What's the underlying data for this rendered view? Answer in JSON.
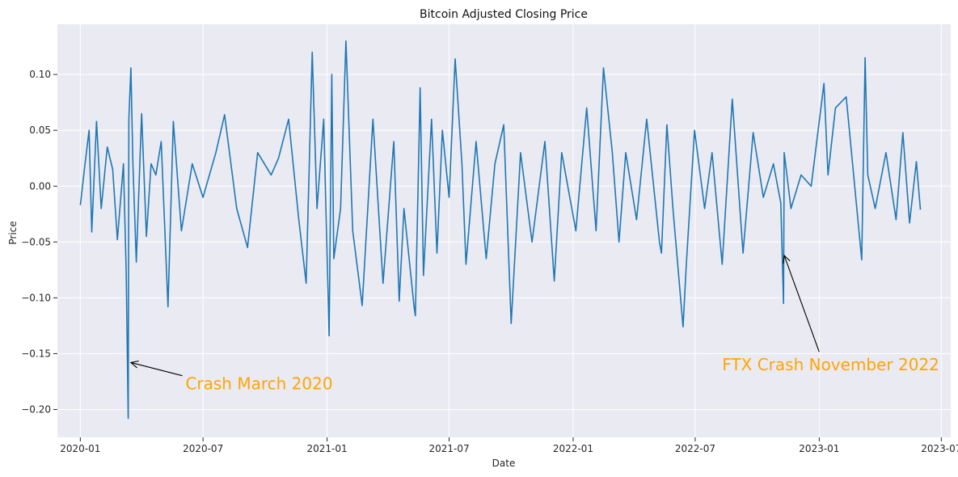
{
  "chart_data": {
    "type": "line",
    "title": "Bitcoin Adjusted Closing Price",
    "xlabel": "Date",
    "ylabel": "Price",
    "xlim": [
      "2019-11-28",
      "2023-07-15"
    ],
    "ylim": [
      -0.225,
      0.145
    ],
    "grid": true,
    "x_ticks": [
      {
        "value": "2020-01-01",
        "label": "2020-01"
      },
      {
        "value": "2020-07-01",
        "label": "2020-07"
      },
      {
        "value": "2021-01-01",
        "label": "2021-01"
      },
      {
        "value": "2021-07-01",
        "label": "2021-07"
      },
      {
        "value": "2022-01-01",
        "label": "2022-01"
      },
      {
        "value": "2022-07-01",
        "label": "2022-07"
      },
      {
        "value": "2023-01-01",
        "label": "2023-01"
      },
      {
        "value": "2023-07-01",
        "label": "2023-07"
      }
    ],
    "y_ticks": [
      {
        "value": 0.1,
        "label": "0.10"
      },
      {
        "value": 0.05,
        "label": "0.05"
      },
      {
        "value": 0.0,
        "label": "0.00"
      },
      {
        "value": -0.05,
        "label": "−0.05"
      },
      {
        "value": -0.1,
        "label": "−0.10"
      },
      {
        "value": -0.15,
        "label": "−0.15"
      },
      {
        "value": -0.2,
        "label": "−0.20"
      }
    ],
    "series": [
      {
        "color": "#1f77b4",
        "x": [
          "2020-01-01",
          "2020-01-08",
          "2020-01-14",
          "2020-01-18",
          "2020-01-25",
          "2020-02-01",
          "2020-02-10",
          "2020-02-18",
          "2020-02-25",
          "2020-03-05",
          "2020-03-09",
          "2020-03-12",
          "2020-03-13",
          "2020-03-16",
          "2020-03-19",
          "2020-03-24",
          "2020-04-01",
          "2020-04-08",
          "2020-04-15",
          "2020-04-22",
          "2020-04-30",
          "2020-05-10",
          "2020-05-18",
          "2020-05-30",
          "2020-06-15",
          "2020-07-01",
          "2020-07-20",
          "2020-08-02",
          "2020-08-20",
          "2020-09-05",
          "2020-09-20",
          "2020-10-10",
          "2020-10-21",
          "2020-11-05",
          "2020-11-20",
          "2020-12-01",
          "2020-12-10",
          "2020-12-17",
          "2020-12-27",
          "2021-01-04",
          "2021-01-08",
          "2021-01-11",
          "2021-01-21",
          "2021-01-29",
          "2021-02-08",
          "2021-02-22",
          "2021-03-10",
          "2021-03-25",
          "2021-04-10",
          "2021-04-18",
          "2021-04-25",
          "2021-05-10",
          "2021-05-12",
          "2021-05-19",
          "2021-05-24",
          "2021-06-05",
          "2021-06-13",
          "2021-06-21",
          "2021-07-01",
          "2021-07-10",
          "2021-07-20",
          "2021-07-26",
          "2021-08-10",
          "2021-08-25",
          "2021-09-07",
          "2021-09-20",
          "2021-10-01",
          "2021-10-15",
          "2021-11-01",
          "2021-11-20",
          "2021-12-04",
          "2021-12-15",
          "2022-01-05",
          "2022-01-21",
          "2022-02-04",
          "2022-02-15",
          "2022-02-28",
          "2022-03-10",
          "2022-03-20",
          "2022-04-05",
          "2022-04-20",
          "2022-05-09",
          "2022-05-12",
          "2022-05-20",
          "2022-05-29",
          "2022-06-13",
          "2022-06-18",
          "2022-06-30",
          "2022-07-15",
          "2022-07-26",
          "2022-08-10",
          "2022-08-25",
          "2022-09-10",
          "2022-09-25",
          "2022-10-10",
          "2022-10-25",
          "2022-11-05",
          "2022-11-09",
          "2022-11-10",
          "2022-11-20",
          "2022-12-05",
          "2022-12-20",
          "2023-01-08",
          "2023-01-14",
          "2023-01-25",
          "2023-02-10",
          "2023-03-05",
          "2023-03-10",
          "2023-03-14",
          "2023-03-25",
          "2023-04-10",
          "2023-04-25",
          "2023-05-05",
          "2023-05-15",
          "2023-05-25",
          "2023-05-31"
        ],
        "values": [
          -0.017,
          0.02,
          0.05,
          -0.041,
          0.058,
          -0.02,
          0.035,
          0.015,
          -0.048,
          0.02,
          -0.077,
          -0.208,
          0.06,
          0.106,
          0.02,
          -0.068,
          0.065,
          -0.045,
          0.02,
          0.01,
          0.04,
          -0.108,
          0.058,
          -0.04,
          0.02,
          -0.01,
          0.03,
          0.064,
          -0.02,
          -0.055,
          0.03,
          0.01,
          0.025,
          0.06,
          -0.03,
          -0.087,
          0.12,
          -0.02,
          0.06,
          -0.134,
          0.1,
          -0.065,
          -0.02,
          0.13,
          -0.04,
          -0.107,
          0.06,
          -0.087,
          0.04,
          -0.103,
          -0.02,
          -0.108,
          -0.116,
          0.088,
          -0.08,
          0.06,
          -0.06,
          0.05,
          -0.01,
          0.114,
          0.02,
          -0.07,
          0.04,
          -0.065,
          0.02,
          0.055,
          -0.123,
          0.03,
          -0.05,
          0.04,
          -0.085,
          0.03,
          -0.04,
          0.07,
          -0.04,
          0.106,
          0.03,
          -0.05,
          0.03,
          -0.03,
          0.06,
          -0.05,
          -0.06,
          0.055,
          -0.02,
          -0.126,
          -0.068,
          0.05,
          -0.02,
          0.03,
          -0.07,
          0.078,
          -0.06,
          0.048,
          -0.01,
          0.02,
          -0.015,
          -0.105,
          0.03,
          -0.02,
          0.01,
          0.0,
          0.092,
          0.01,
          0.07,
          0.08,
          -0.066,
          0.115,
          0.01,
          -0.02,
          0.03,
          -0.03,
          0.048,
          -0.033,
          0.022,
          -0.021
        ]
      }
    ],
    "annotations": [
      {
        "text": "Crash March 2020",
        "color": "#FFA500",
        "xy": [
          "2020-03-16",
          -0.158
        ],
        "text_at": [
          "2020-06-05",
          -0.177
        ]
      },
      {
        "text": "FTX Crash November 2022",
        "color": "#FFA500",
        "xy": [
          "2022-11-10",
          -0.062
        ],
        "text_at": [
          "2022-08-10",
          -0.16
        ]
      }
    ]
  },
  "colors": {
    "plot_bg": "#eaeaf2",
    "grid": "#ffffff",
    "line": "#1f77b4",
    "annotation": "#FFA500"
  }
}
